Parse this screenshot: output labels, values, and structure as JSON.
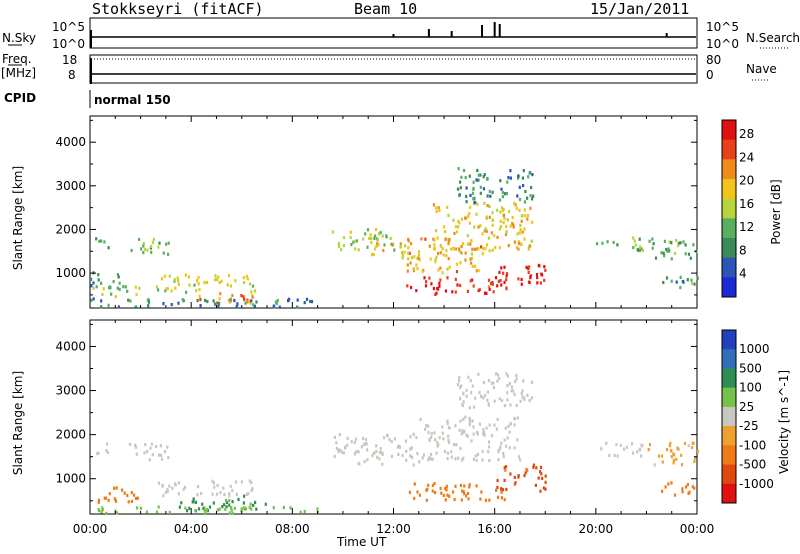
{
  "header": {
    "station": "Stokkseyri (fitACF)",
    "beam": "Beam 10",
    "date": "15/Jan/2011"
  },
  "labels": {
    "nsky": "N.Sky",
    "nsearch": "N.Search",
    "freq": "Freq.",
    "mhz": "[MHz]",
    "nave": "Nave",
    "cpid": "CPID",
    "cpid_value": "normal 150",
    "nsky_top": "10^5",
    "nsky_bottom": "10^0",
    "nsearch_top": "10^5",
    "nsearch_bottom": "10^0",
    "freq_top": "18",
    "freq_bottom": "8",
    "nave_top": "80",
    "nave_bottom": "0"
  },
  "colors": {
    "power_scale": [
      "#1a2bd6",
      "#2c55b8",
      "#3a8a5a",
      "#56b060",
      "#b7d43a",
      "#f2c31b",
      "#f28a1a",
      "#e8401a",
      "#e01010"
    ],
    "velocity_scale": [
      "#2040c0",
      "#3070b8",
      "#2f8f52",
      "#74c24a",
      "#c8c8c0",
      "#f0a030",
      "#ee7a18",
      "#e04810",
      "#e01010"
    ]
  },
  "chart_data": [
    {
      "type": "heatmap",
      "title": "",
      "xlabel": "Time UT",
      "ylabel": "Slant Range [km]",
      "x_ticks": [
        "00:00",
        "04:00",
        "08:00",
        "12:00",
        "16:00",
        "20:00",
        "00:00"
      ],
      "y_ticks": [
        "1000",
        "2000",
        "3000",
        "4000"
      ],
      "ylim": [
        200,
        4600
      ],
      "colorbar": {
        "label": "Power [dB]",
        "ticks": [
          "4",
          "8",
          "12",
          "16",
          "20",
          "24",
          "28"
        ]
      },
      "blobs": [
        {
          "t0": 0.2,
          "t1": 0.8,
          "r0": 1500,
          "r1": 1800,
          "v": 10
        },
        {
          "t0": 1.5,
          "t1": 3.2,
          "r0": 1400,
          "r1": 1800,
          "v": 12
        },
        {
          "t0": 0.0,
          "t1": 1.2,
          "r0": 600,
          "r1": 1000,
          "v": 9
        },
        {
          "t0": 0.0,
          "t1": 2.0,
          "r0": 450,
          "r1": 700,
          "v": 14
        },
        {
          "t0": 2.5,
          "t1": 6.5,
          "r0": 550,
          "r1": 950,
          "v": 16
        },
        {
          "t0": 4.0,
          "t1": 6.5,
          "r0": 300,
          "r1": 550,
          "v": 22
        },
        {
          "t0": 0.0,
          "t1": 9.0,
          "r0": 200,
          "r1": 400,
          "v": 8
        },
        {
          "t0": 9.5,
          "t1": 12.0,
          "r0": 1500,
          "r1": 2000,
          "v": 14
        },
        {
          "t0": 11.0,
          "t1": 13.0,
          "r0": 1300,
          "r1": 1700,
          "v": 18
        },
        {
          "t0": 12.5,
          "t1": 15.5,
          "r0": 1000,
          "r1": 1800,
          "v": 20
        },
        {
          "t0": 13.5,
          "t1": 17.5,
          "r0": 1500,
          "r1": 2600,
          "v": 18
        },
        {
          "t0": 14.5,
          "t1": 17.5,
          "r0": 2600,
          "r1": 3400,
          "v": 9
        },
        {
          "t0": 12.5,
          "t1": 16.5,
          "r0": 500,
          "r1": 900,
          "v": 27
        },
        {
          "t0": 16.0,
          "t1": 18.0,
          "r0": 700,
          "r1": 1200,
          "v": 27
        },
        {
          "t0": 20.0,
          "t1": 22.0,
          "r0": 1500,
          "r1": 1800,
          "v": 12
        },
        {
          "t0": 22.0,
          "t1": 24.0,
          "r0": 1300,
          "r1": 1800,
          "v": 11
        },
        {
          "t0": 22.5,
          "t1": 24.0,
          "r0": 600,
          "r1": 900,
          "v": 10
        }
      ]
    },
    {
      "type": "heatmap",
      "title": "",
      "xlabel": "Time UT",
      "ylabel": "Slant Range [km]",
      "x_ticks": [
        "00:00",
        "04:00",
        "08:00",
        "12:00",
        "16:00",
        "20:00",
        "00:00"
      ],
      "y_ticks": [
        "1000",
        "2000",
        "3000",
        "4000"
      ],
      "ylim": [
        200,
        4600
      ],
      "colorbar": {
        "label": "Velocity [m s^-1]",
        "ticks": [
          "1000",
          "500",
          "100",
          "25",
          "-25",
          "-100",
          "-500",
          "-1000"
        ]
      },
      "blobs": [
        {
          "t0": 0.2,
          "t1": 0.8,
          "r0": 1500,
          "r1": 1800,
          "v": 0
        },
        {
          "t0": 1.5,
          "t1": 3.2,
          "r0": 1400,
          "r1": 1800,
          "v": 0
        },
        {
          "t0": 0.0,
          "t1": 2.0,
          "r0": 450,
          "r1": 800,
          "v": -300
        },
        {
          "t0": 2.5,
          "t1": 6.5,
          "r0": 600,
          "r1": 950,
          "v": 0
        },
        {
          "t0": 3.5,
          "t1": 7.0,
          "r0": 250,
          "r1": 600,
          "v": 150
        },
        {
          "t0": 0.0,
          "t1": 9.0,
          "r0": 200,
          "r1": 350,
          "v": 60
        },
        {
          "t0": 9.5,
          "t1": 13.0,
          "r0": 1300,
          "r1": 2000,
          "v": 0
        },
        {
          "t0": 13.0,
          "t1": 17.0,
          "r0": 1400,
          "r1": 2400,
          "v": 0
        },
        {
          "t0": 14.5,
          "t1": 17.5,
          "r0": 2600,
          "r1": 3400,
          "v": 0
        },
        {
          "t0": 12.5,
          "t1": 16.5,
          "r0": 500,
          "r1": 900,
          "v": -300
        },
        {
          "t0": 16.0,
          "t1": 18.0,
          "r0": 700,
          "r1": 1300,
          "v": -700
        },
        {
          "t0": 20.0,
          "t1": 22.0,
          "r0": 1500,
          "r1": 1800,
          "v": 0
        },
        {
          "t0": 22.0,
          "t1": 24.0,
          "r0": 1300,
          "r1": 1800,
          "v": -60
        },
        {
          "t0": 22.5,
          "t1": 24.0,
          "r0": 600,
          "r1": 900,
          "v": -300
        }
      ]
    }
  ]
}
